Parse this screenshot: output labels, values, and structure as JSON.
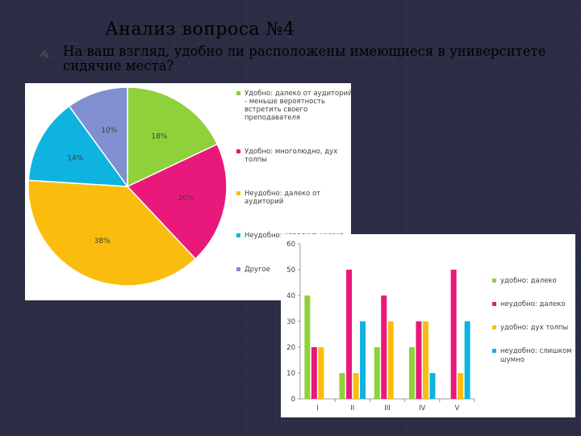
{
  "slide": {
    "title": "Анализ вопроса №4",
    "question": "На ваш взгляд, удобно ли расположены имеющиеся в университете сидячие места?"
  },
  "chart_data": [
    {
      "type": "pie",
      "slices": [
        {
          "label": "Удобно: далеко от аудиторий - меньше вероятность встретить своего преподавателя",
          "value": 18,
          "value_label": "18%",
          "color": "#8fd13a"
        },
        {
          "label": "Удобно: многолюдно, дух толпы",
          "value": 20,
          "value_label": "20%",
          "color": "#e8197b"
        },
        {
          "label": "Неудобно: далеко от аудиторий",
          "value": 38,
          "value_label": "38%",
          "color": "#fbbd0d"
        },
        {
          "label": "Неудобно: чересчур шумно",
          "value": 14,
          "value_label": "14%",
          "color": "#0eb3e0"
        },
        {
          "label": "Другое",
          "value": 10,
          "value_label": "10%",
          "color": "#7f8fcf"
        }
      ],
      "legend_position": "right"
    },
    {
      "type": "bar",
      "categories": [
        "I",
        "II",
        "III",
        "IV",
        "V"
      ],
      "series": [
        {
          "name": "удобно: далеко",
          "values": [
            40,
            10,
            20,
            20,
            0
          ],
          "color": "#8fd13a"
        },
        {
          "name": "неудобно: далеко",
          "values": [
            20,
            50,
            40,
            30,
            50
          ],
          "color": "#e8197b"
        },
        {
          "name": "удобно: дух толпы",
          "values": [
            20,
            10,
            30,
            30,
            10
          ],
          "color": "#fbbd0d"
        },
        {
          "name": "неудобно: слишком шумно",
          "values": [
            0,
            30,
            0,
            10,
            30
          ],
          "color": "#0eb3e0"
        }
      ],
      "ylim": [
        0,
        60
      ],
      "yticks": [
        0,
        10,
        20,
        30,
        40,
        50,
        60
      ],
      "grid": false,
      "legend_position": "right"
    }
  ]
}
